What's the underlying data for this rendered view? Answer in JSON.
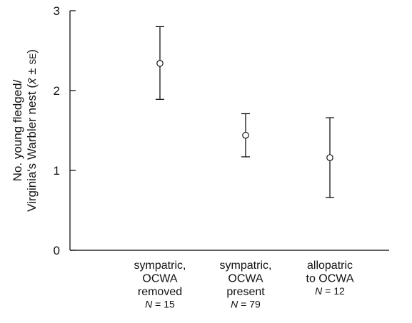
{
  "chart_data": {
    "type": "scatter",
    "ylabel_lines": [
      "No. young fledged/",
      "Virginia's Warbler nest ("
    ],
    "ylabel_mean": "x̄",
    "ylabel_pm": " ± ",
    "ylabel_se": "SE",
    "ylabel_close": ")",
    "ylim": [
      0,
      3
    ],
    "yticks": [
      0,
      1,
      2,
      3
    ],
    "categories": [
      {
        "lines": [
          "sympatric,",
          "OCWA",
          "removed"
        ],
        "n_label": "N",
        "n_eq": " = 15"
      },
      {
        "lines": [
          "sympatric,",
          "OCWA",
          "present"
        ],
        "n_label": "N",
        "n_eq": " = 79"
      },
      {
        "lines": [
          "allopatric",
          "to OCWA"
        ],
        "n_label": "N",
        "n_eq": " = 12"
      }
    ],
    "values": [
      2.34,
      1.44,
      1.16
    ],
    "error_upper": [
      2.8,
      1.71,
      1.66
    ],
    "error_lower": [
      1.89,
      1.17,
      0.66
    ],
    "grid": false
  }
}
